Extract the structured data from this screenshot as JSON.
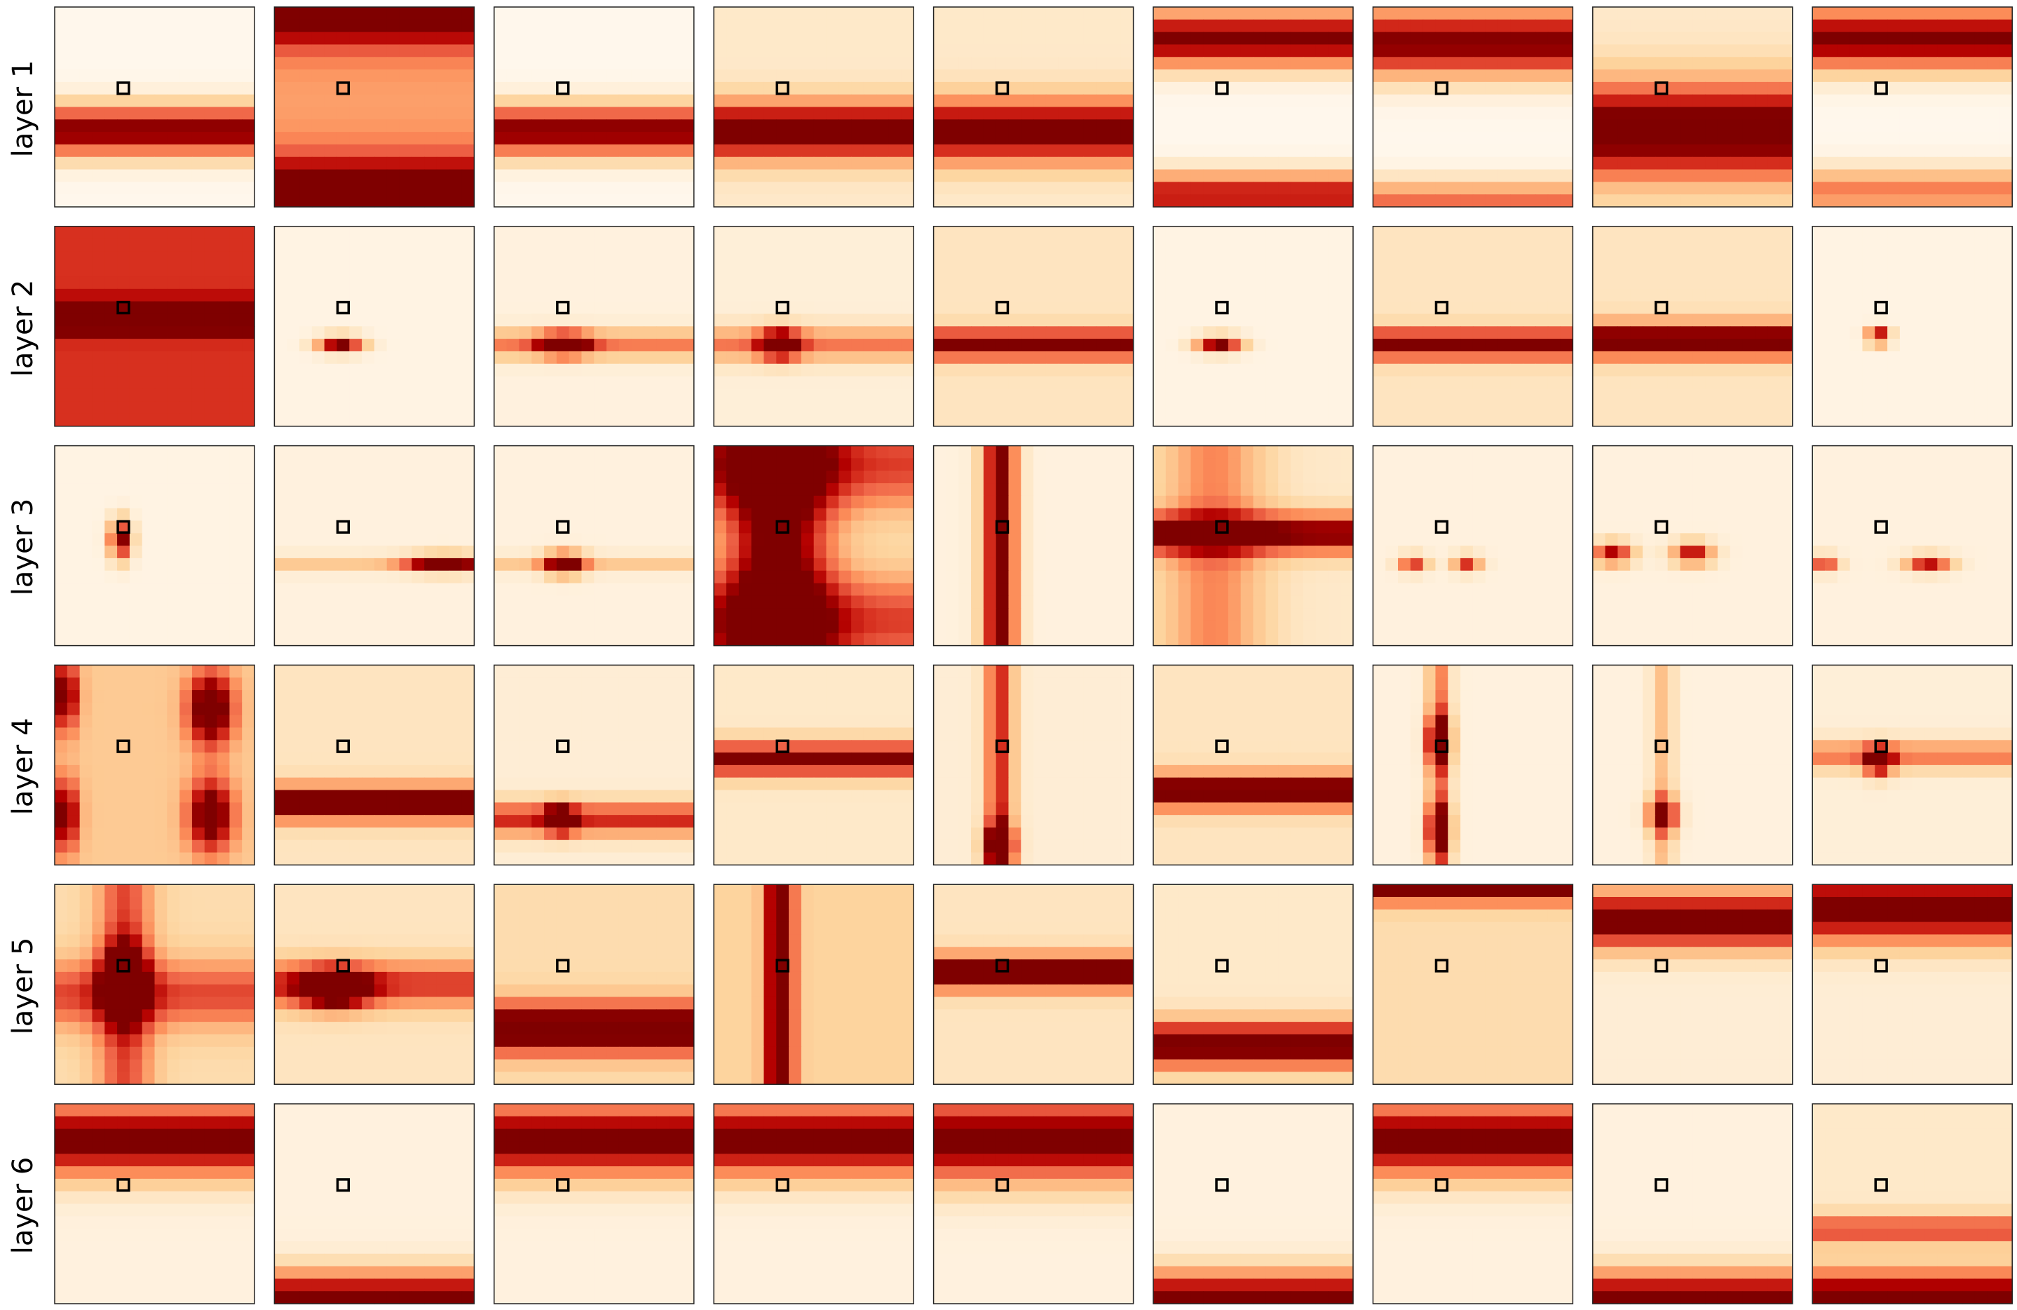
{
  "figure": {
    "title": "",
    "rows": [
      "layer 1",
      "layer 2",
      "layer 3",
      "layer 4",
      "layer 5",
      "layer 6"
    ],
    "columns_per_row": 9
  },
  "chart_data": {
    "type": "heatmap",
    "title": "",
    "xlabel": "",
    "ylabel": "",
    "grid_size": 16,
    "query_cell": [
      6,
      5
    ],
    "colormap": "OrRd",
    "value_range": [
      0,
      1
    ],
    "row_labels": [
      "layer 1",
      "layer 2",
      "layer 3",
      "layer 4",
      "layer 5",
      "layer 6"
    ],
    "patterns": [
      [
        {
          "h": [
            [
              0.62,
              1.0,
              0.09
            ]
          ]
        },
        {
          "h": [
            [
              0.94,
              0.8,
              0.13
            ],
            [
              0.03,
              0.7,
              0.12
            ]
          ],
          "b": 0.45
        },
        {
          "h": [
            [
              0.62,
              1.0,
              0.09
            ]
          ]
        },
        {
          "h": [
            [
              0.62,
              1.0,
              0.1
            ]
          ],
          "b": 0.12
        },
        {
          "h": [
            [
              0.62,
              0.95,
              0.11
            ]
          ],
          "b": 0.12
        },
        {
          "h": [
            [
              0.16,
              1.0,
              0.1
            ],
            [
              0.94,
              0.85,
              0.08
            ]
          ]
        },
        {
          "h": [
            [
              0.18,
              1.0,
              0.12
            ],
            [
              0.98,
              0.6,
              0.08
            ]
          ]
        },
        {
          "h": [
            [
              0.62,
              1.0,
              0.17
            ]
          ],
          "b": 0.12
        },
        {
          "h": [
            [
              0.16,
              1.0,
              0.11
            ],
            [
              0.92,
              0.55,
              0.08
            ]
          ]
        }
      ],
      [
        {
          "b": 0.75,
          "h": [
            [
              0.45,
              0.9,
              0.05
            ]
          ]
        },
        {
          "p": [
            [
              0.59,
              0.33,
              1.0,
              0.03,
              0.08
            ]
          ],
          "b": 0.03
        },
        {
          "h": [
            [
              0.59,
              0.5,
              0.05
            ]
          ],
          "p": [
            [
              0.59,
              0.35,
              1.0,
              0.04,
              0.09
            ]
          ],
          "b": 0.05
        },
        {
          "h": [
            [
              0.59,
              0.5,
              0.06
            ]
          ],
          "p": [
            [
              0.59,
              0.33,
              1.0,
              0.05,
              0.07
            ]
          ],
          "b": 0.07
        },
        {
          "h": [
            [
              0.59,
              1.0,
              0.05
            ]
          ],
          "b": 0.15
        },
        {
          "p": [
            [
              0.59,
              0.33,
              1.0,
              0.03,
              0.08
            ]
          ],
          "b": 0.03
        },
        {
          "h": [
            [
              0.59,
              1.0,
              0.05
            ]
          ],
          "b": 0.15
        },
        {
          "h": [
            [
              0.57,
              1.0,
              0.06
            ]
          ],
          "b": 0.15
        },
        {
          "p": [
            [
              0.55,
              0.33,
              1.0,
              0.03,
              0.04
            ]
          ],
          "b": 0.03
        }
      ],
      [
        {
          "p": [
            [
              0.47,
              0.33,
              1.0,
              0.07,
              0.04
            ]
          ],
          "b": 0.03
        },
        {
          "h": [
            [
              0.59,
              0.25,
              0.03
            ]
          ],
          "p": [
            [
              0.59,
              0.85,
              1.0,
              0.03,
              0.13
            ]
          ],
          "b": 0.05
        },
        {
          "h": [
            [
              0.59,
              0.25,
              0.03
            ]
          ],
          "p": [
            [
              0.59,
              0.35,
              1.0,
              0.04,
              0.07
            ]
          ],
          "b": 0.05
        },
        {
          "v": [
            [
              0.32,
              0.9,
              0.18
            ]
          ],
          "h": [
            [
              0.09,
              0.6,
              0.18
            ],
            [
              0.88,
              0.6,
              0.18
            ]
          ],
          "b": 0.12
        },
        {
          "v": [
            [
              0.33,
              1.0,
              0.06
            ]
          ],
          "b": 0.05
        },
        {
          "h": [
            [
              0.44,
              0.9,
              0.07
            ]
          ],
          "v": [
            [
              0.3,
              0.4,
              0.18
            ]
          ],
          "b": 0.12
        },
        {
          "p": [
            [
              0.59,
              0.2,
              0.7,
              0.03,
              0.05
            ],
            [
              0.59,
              0.47,
              0.7,
              0.03,
              0.05
            ]
          ],
          "b": 0.05
        },
        {
          "p": [
            [
              0.54,
              0.1,
              0.85,
              0.04,
              0.07
            ],
            [
              0.54,
              0.5,
              0.85,
              0.04,
              0.07
            ]
          ],
          "b": 0.05
        },
        {
          "p": [
            [
              0.59,
              0.06,
              0.7,
              0.03,
              0.05
            ],
            [
              0.59,
              0.58,
              0.8,
              0.03,
              0.08
            ]
          ],
          "b": 0.05
        }
      ],
      [
        {
          "p": [
            [
              0.15,
              0.05,
              0.8,
              0.13,
              0.05
            ],
            [
              0.75,
              0.05,
              0.8,
              0.13,
              0.05
            ],
            [
              0.22,
              0.78,
              1.0,
              0.13,
              0.08
            ],
            [
              0.75,
              0.78,
              0.9,
              0.13,
              0.08
            ]
          ],
          "b": 0.3
        },
        {
          "h": [
            [
              0.69,
              1.0,
              0.06
            ]
          ],
          "b": 0.15
        },
        {
          "h": [
            [
              0.77,
              0.7,
              0.06
            ]
          ],
          "p": [
            [
              0.77,
              0.33,
              1.0,
              0.05,
              0.05
            ]
          ],
          "b": 0.08
        },
        {
          "h": [
            [
              0.47,
              0.9,
              0.06
            ]
          ],
          "b": 0.12
        },
        {
          "v": [
            [
              0.33,
              0.7,
              0.05
            ]
          ],
          "p": [
            [
              0.9,
              0.33,
              1.0,
              0.07,
              0.05
            ]
          ],
          "b": 0.08
        },
        {
          "h": [
            [
              0.63,
              1.0,
              0.06
            ]
          ],
          "b": 0.15
        },
        {
          "v": [
            [
              0.33,
              0.5,
              0.04
            ]
          ],
          "p": [
            [
              0.38,
              0.33,
              1.0,
              0.09,
              0.04
            ],
            [
              0.82,
              0.33,
              0.9,
              0.09,
              0.04
            ]
          ],
          "b": 0.05
        },
        {
          "v": [
            [
              0.35,
              0.3,
              0.04
            ]
          ],
          "p": [
            [
              0.75,
              0.35,
              1.0,
              0.06,
              0.05
            ]
          ],
          "b": 0.05
        },
        {
          "h": [
            [
              0.45,
              0.5,
              0.05
            ]
          ],
          "p": [
            [
              0.48,
              0.33,
              1.0,
              0.05,
              0.05
            ]
          ],
          "b": 0.07
        }
      ],
      [
        {
          "p": [
            [
              0.48,
              0.35,
              1.0,
              0.12,
              0.07
            ]
          ],
          "h": [
            [
              0.55,
              0.5,
              0.12
            ]
          ],
          "v": [
            [
              0.35,
              0.5,
              0.1
            ]
          ],
          "b": 0.2
        },
        {
          "p": [
            [
              0.52,
              0.3,
              1.0,
              0.07,
              0.12
            ]
          ],
          "h": [
            [
              0.5,
              0.6,
              0.08
            ]
          ],
          "b": 0.15
        },
        {
          "h": [
            [
              0.72,
              1.0,
              0.09
            ]
          ],
          "b": 0.2
        },
        {
          "v": [
            [
              0.33,
              1.0,
              0.05
            ]
          ],
          "b": 0.25
        },
        {
          "h": [
            [
              0.44,
              1.0,
              0.06
            ]
          ],
          "b": 0.15
        },
        {
          "h": [
            [
              0.8,
              1.0,
              0.08
            ]
          ],
          "b": 0.12
        },
        {
          "b": 0.2,
          "h": [
            [
              0.0,
              1.0,
              0.06
            ]
          ]
        },
        {
          "h": [
            [
              0.18,
              1.0,
              0.1
            ]
          ],
          "b": 0.08
        },
        {
          "h": [
            [
              0.12,
              1.0,
              0.12
            ]
          ],
          "b": 0.08
        }
      ],
      [
        {
          "h": [
            [
              0.18,
              1.0,
              0.13
            ]
          ],
          "b": 0.05
        },
        {
          "h": [
            [
              0.98,
              1.0,
              0.1
            ]
          ],
          "b": 0.05
        },
        {
          "h": [
            [
              0.18,
              1.0,
              0.13
            ]
          ],
          "b": 0.05
        },
        {
          "h": [
            [
              0.18,
              1.0,
              0.13
            ]
          ],
          "b": 0.05
        },
        {
          "h": [
            [
              0.18,
              1.0,
              0.15
            ]
          ],
          "b": 0.05
        },
        {
          "h": [
            [
              0.98,
              1.0,
              0.1
            ]
          ],
          "b": 0.05
        },
        {
          "h": [
            [
              0.18,
              1.0,
              0.13
            ]
          ],
          "b": 0.05
        },
        {
          "h": [
            [
              0.98,
              1.0,
              0.1
            ]
          ],
          "b": 0.05
        },
        {
          "h": [
            [
              0.63,
              0.6,
              0.05
            ],
            [
              0.98,
              1.0,
              0.1
            ]
          ],
          "b": 0.12
        }
      ]
    ]
  }
}
